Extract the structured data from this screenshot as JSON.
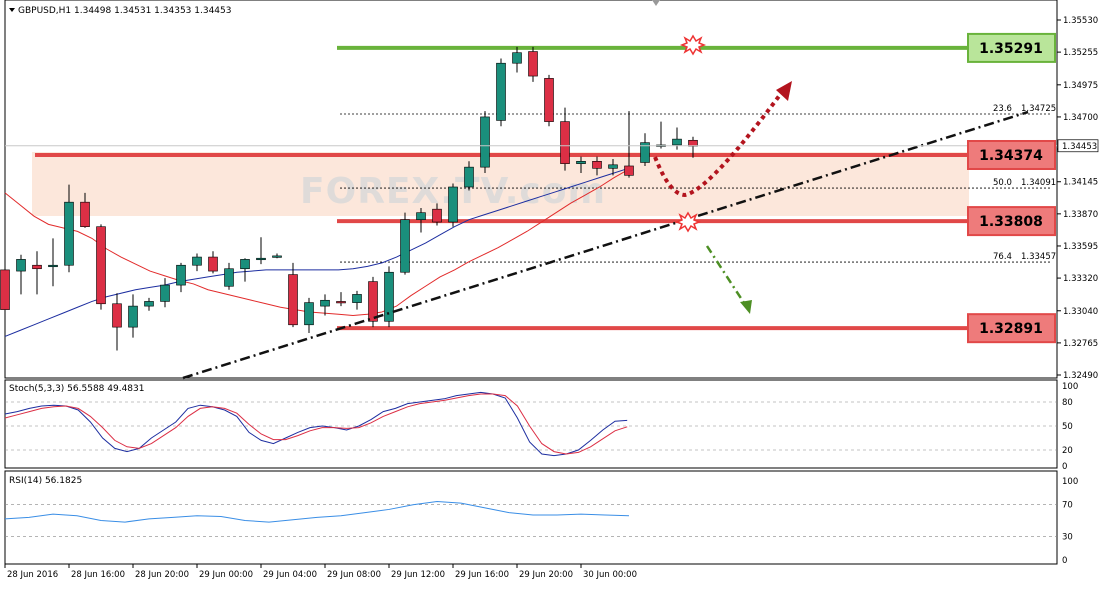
{
  "window": {
    "header": "GBPUSD,H1  1.34498 1.34531 1.34353 1.34453"
  },
  "watermark": "FOREX.TV.com",
  "chart_data": [
    {
      "type": "candlestick",
      "title": "GBPUSD,H1  1.34498 1.34531 1.34353 1.34453",
      "ylim": [
        1.3249,
        1.3559
      ],
      "y_ticks": [
        "1.35530",
        "1.35255",
        "1.34975",
        "1.34700",
        "1.34425",
        "1.34145",
        "1.33870",
        "1.33595",
        "1.33320",
        "1.33040",
        "1.32765",
        "1.32490"
      ],
      "y_tick_values": [
        1.3553,
        1.35255,
        1.34975,
        1.347,
        1.34425,
        1.34145,
        1.3387,
        1.33595,
        1.3332,
        1.3304,
        1.32765,
        1.3249
      ],
      "last_price": "1.34453",
      "x_labels": [
        "28 Jun 2016",
        "28 Jun 16:00",
        "28 Jun 20:00",
        "29 Jun 00:00",
        "29 Jun 04:00",
        "29 Jun 08:00",
        "29 Jun 12:00",
        "29 Jun 16:00",
        "29 Jun 20:00",
        "30 Jun 00:00"
      ],
      "candles": [
        {
          "o": 1.3339,
          "h": 1.3352,
          "l": 1.3295,
          "c": 1.3305
        },
        {
          "o": 1.3338,
          "h": 1.3352,
          "l": 1.3318,
          "c": 1.3348
        },
        {
          "o": 1.3343,
          "h": 1.3355,
          "l": 1.3318,
          "c": 1.334
        },
        {
          "o": 1.3343,
          "h": 1.3366,
          "l": 1.3325,
          "c": 1.3343
        },
        {
          "o": 1.3343,
          "h": 1.3412,
          "l": 1.3337,
          "c": 1.3397
        },
        {
          "o": 1.3397,
          "h": 1.3405,
          "l": 1.3375,
          "c": 1.3376
        },
        {
          "o": 1.3376,
          "h": 1.3378,
          "l": 1.3305,
          "c": 1.331
        },
        {
          "o": 1.331,
          "h": 1.3319,
          "l": 1.327,
          "c": 1.329
        },
        {
          "o": 1.329,
          "h": 1.3318,
          "l": 1.3281,
          "c": 1.3308
        },
        {
          "o": 1.3308,
          "h": 1.3315,
          "l": 1.3304,
          "c": 1.3312
        },
        {
          "o": 1.3312,
          "h": 1.3332,
          "l": 1.3307,
          "c": 1.3326
        },
        {
          "o": 1.3326,
          "h": 1.3345,
          "l": 1.332,
          "c": 1.3343
        },
        {
          "o": 1.3343,
          "h": 1.3353,
          "l": 1.3338,
          "c": 1.335
        },
        {
          "o": 1.335,
          "h": 1.3355,
          "l": 1.3336,
          "c": 1.3338
        },
        {
          "o": 1.3325,
          "h": 1.3345,
          "l": 1.3322,
          "c": 1.334
        },
        {
          "o": 1.334,
          "h": 1.3349,
          "l": 1.3329,
          "c": 1.3348
        },
        {
          "o": 1.3348,
          "h": 1.3367,
          "l": 1.3344,
          "c": 1.3349
        },
        {
          "o": 1.3351,
          "h": 1.3353,
          "l": 1.3349,
          "c": 1.3351
        },
        {
          "o": 1.3335,
          "h": 1.3345,
          "l": 1.329,
          "c": 1.3292
        },
        {
          "o": 1.3292,
          "h": 1.3315,
          "l": 1.3285,
          "c": 1.3311
        },
        {
          "o": 1.3308,
          "h": 1.3318,
          "l": 1.33,
          "c": 1.3313
        },
        {
          "o": 1.3312,
          "h": 1.332,
          "l": 1.3308,
          "c": 1.3311
        },
        {
          "o": 1.3311,
          "h": 1.3321,
          "l": 1.3305,
          "c": 1.3318
        },
        {
          "o": 1.3329,
          "h": 1.3333,
          "l": 1.329,
          "c": 1.3295
        },
        {
          "o": 1.3295,
          "h": 1.3342,
          "l": 1.329,
          "c": 1.3337
        },
        {
          "o": 1.3337,
          "h": 1.3388,
          "l": 1.3335,
          "c": 1.3382
        },
        {
          "o": 1.3382,
          "h": 1.3392,
          "l": 1.3371,
          "c": 1.3388
        },
        {
          "o": 1.3391,
          "h": 1.3396,
          "l": 1.3377,
          "c": 1.338
        },
        {
          "o": 1.338,
          "h": 1.3413,
          "l": 1.3376,
          "c": 1.341
        },
        {
          "o": 1.341,
          "h": 1.3432,
          "l": 1.3407,
          "c": 1.3427
        },
        {
          "o": 1.3427,
          "h": 1.3475,
          "l": 1.3422,
          "c": 1.347
        },
        {
          "o": 1.3467,
          "h": 1.352,
          "l": 1.3462,
          "c": 1.3516
        },
        {
          "o": 1.3516,
          "h": 1.353,
          "l": 1.3508,
          "c": 1.3525
        },
        {
          "o": 1.3526,
          "h": 1.353,
          "l": 1.35,
          "c": 1.3505
        },
        {
          "o": 1.3503,
          "h": 1.3506,
          "l": 1.3462,
          "c": 1.3466
        },
        {
          "o": 1.3466,
          "h": 1.3478,
          "l": 1.3424,
          "c": 1.343
        },
        {
          "o": 1.343,
          "h": 1.3436,
          "l": 1.3422,
          "c": 1.3432
        },
        {
          "o": 1.3432,
          "h": 1.3436,
          "l": 1.342,
          "c": 1.3426
        },
        {
          "o": 1.3426,
          "h": 1.3434,
          "l": 1.342,
          "c": 1.3429
        },
        {
          "o": 1.3428,
          "h": 1.3475,
          "l": 1.3418,
          "c": 1.342
        },
        {
          "o": 1.3431,
          "h": 1.3456,
          "l": 1.3428,
          "c": 1.3448
        },
        {
          "o": 1.3446,
          "h": 1.3466,
          "l": 1.3443,
          "c": 1.3446
        },
        {
          "o": 1.3446,
          "h": 1.3461,
          "l": 1.3442,
          "c": 1.3451
        },
        {
          "o": 1.345,
          "h": 1.3453,
          "l": 1.3435,
          "c": 1.3445
        }
      ],
      "colors": {
        "bull": "#1a8f7c",
        "bear": "#dc2f45",
        "ma_fast": "#e22b2b",
        "ma_slow": "#1d2ea0"
      },
      "ma_fast": [
        1.3405,
        1.3395,
        1.3385,
        1.3378,
        1.3375,
        1.3372,
        1.3366,
        1.3357,
        1.335,
        1.3344,
        1.3338,
        1.3334,
        1.333,
        1.3327,
        1.3322,
        1.3319,
        1.3316,
        1.3313,
        1.331,
        1.3307,
        1.3305,
        1.3303,
        1.3302,
        1.3301,
        1.33,
        1.3301,
        1.3303,
        1.3308,
        1.3317,
        1.3325,
        1.3333,
        1.3339,
        1.3346,
        1.3352,
        1.3358,
        1.3365,
        1.3372,
        1.338,
        1.3388,
        1.3396,
        1.3403,
        1.341,
        1.3418,
        1.3425
      ],
      "ma_slow": [
        1.3282,
        1.3287,
        1.3292,
        1.3297,
        1.3302,
        1.3307,
        1.3312,
        1.3316,
        1.3319,
        1.3322,
        1.3324,
        1.3326,
        1.3329,
        1.3331,
        1.3333,
        1.3335,
        1.3337,
        1.3338,
        1.3339,
        1.3339,
        1.3339,
        1.3339,
        1.3339,
        1.3339,
        1.334,
        1.3342,
        1.3345,
        1.335,
        1.3356,
        1.3362,
        1.3369,
        1.3376,
        1.3382,
        1.3386,
        1.339,
        1.3394,
        1.3398,
        1.3402,
        1.3406,
        1.341,
        1.3414,
        1.3418,
        1.3422,
        1.3426
      ],
      "fib_levels": [
        {
          "label": "23.6",
          "value": "1.34725",
          "price": 1.34725
        },
        {
          "label": "50.0",
          "value": "1.34091",
          "price": 1.34091
        },
        {
          "label": "76.4",
          "value": "1.33457",
          "price": 1.33457
        }
      ],
      "level_boxes": [
        {
          "text": "1.35291",
          "price": 1.35291,
          "color": "#69b33b",
          "fill": "#b9e59a"
        },
        {
          "text": "1.34374",
          "price": 1.34374,
          "color": "#e14848",
          "fill": "#ee7b7b"
        },
        {
          "text": "1.33808",
          "price": 1.33808,
          "color": "#e14848",
          "fill": "#ee7b7b"
        },
        {
          "text": "1.32891",
          "price": 1.32891,
          "color": "#e14848",
          "fill": "#ee7b7b"
        }
      ]
    },
    {
      "type": "line",
      "title": "Stoch(5,3,3) 56.5588 49.4831",
      "ylim": [
        0,
        100
      ],
      "y_ticks": [
        "100",
        "80",
        "50",
        "20",
        "0"
      ],
      "y_tick_values": [
        100,
        80,
        50,
        20,
        0
      ],
      "series": [
        {
          "color": "#1d2ea0",
          "values": [
            65,
            68,
            72,
            75,
            76,
            75,
            70,
            55,
            35,
            22,
            18,
            22,
            35,
            45,
            55,
            72,
            76,
            74,
            70,
            62,
            42,
            32,
            28,
            35,
            42,
            48,
            50,
            48,
            45,
            50,
            58,
            68,
            72,
            78,
            80,
            82,
            84,
            88,
            90,
            92,
            90,
            85,
            60,
            30,
            15,
            13,
            15,
            20,
            32,
            45,
            56,
            57
          ]
        },
        {
          "color": "#dc2f45",
          "values": [
            60,
            64,
            68,
            72,
            74,
            75,
            72,
            62,
            48,
            32,
            24,
            22,
            28,
            38,
            48,
            62,
            72,
            74,
            72,
            66,
            52,
            40,
            33,
            33,
            38,
            44,
            48,
            48,
            47,
            48,
            54,
            62,
            68,
            74,
            78,
            80,
            82,
            85,
            88,
            90,
            90,
            88,
            75,
            50,
            28,
            18,
            15,
            17,
            24,
            34,
            44,
            49
          ]
        }
      ]
    },
    {
      "type": "line",
      "title": "RSI(14) 56.1825",
      "ylim": [
        0,
        100
      ],
      "y_ticks": [
        "100",
        "70",
        "30",
        "0"
      ],
      "y_tick_values": [
        100,
        70,
        30,
        0
      ],
      "series": [
        {
          "color": "#3a8ee6",
          "values": [
            52,
            54,
            58,
            56,
            50,
            48,
            52,
            54,
            56,
            55,
            50,
            48,
            51,
            54,
            56,
            60,
            64,
            70,
            74,
            72,
            66,
            60,
            57,
            57,
            58,
            57,
            56
          ]
        }
      ]
    }
  ]
}
